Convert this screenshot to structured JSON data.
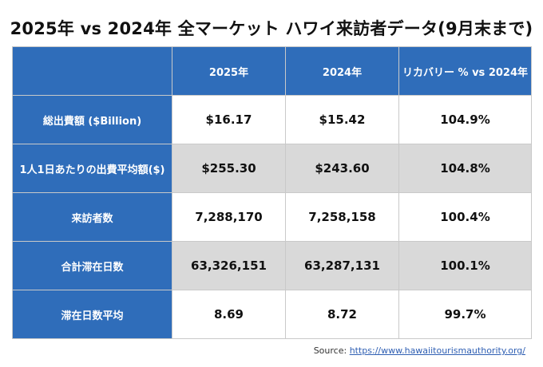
{
  "title": "2025年 vs 2024年 全マーケット  ハワイ来訪者データ(9月末まで)",
  "table": {
    "headers": [
      "",
      "2025年",
      "2024年",
      "リカバリー % vs 2024年"
    ],
    "rows": [
      {
        "label": "総出費額 ($Billion)",
        "values": [
          "$16.17",
          "$15.42",
          "104.9%"
        ]
      },
      {
        "label": "1人1日あたりの出費平均額($)",
        "values": [
          "$255.30",
          "$243.60",
          "104.8%"
        ]
      },
      {
        "label": "来訪者数",
        "values": [
          "7,288,170",
          "7,258,158",
          "100.4%"
        ]
      },
      {
        "label": "合計滞在日数",
        "values": [
          "63,326,151",
          "63,287,131",
          "100.1%"
        ]
      },
      {
        "label": "滞在日数平均",
        "values": [
          "8.69",
          "8.72",
          "99.7%"
        ]
      }
    ]
  },
  "source": {
    "label": "Source: ",
    "link_text": "https://www.hawaiitourismauthority.org/"
  },
  "colors": {
    "header_blue": "#2f6dba",
    "shaded_row": "#d9d9d9",
    "link": "#2f5fb3"
  }
}
